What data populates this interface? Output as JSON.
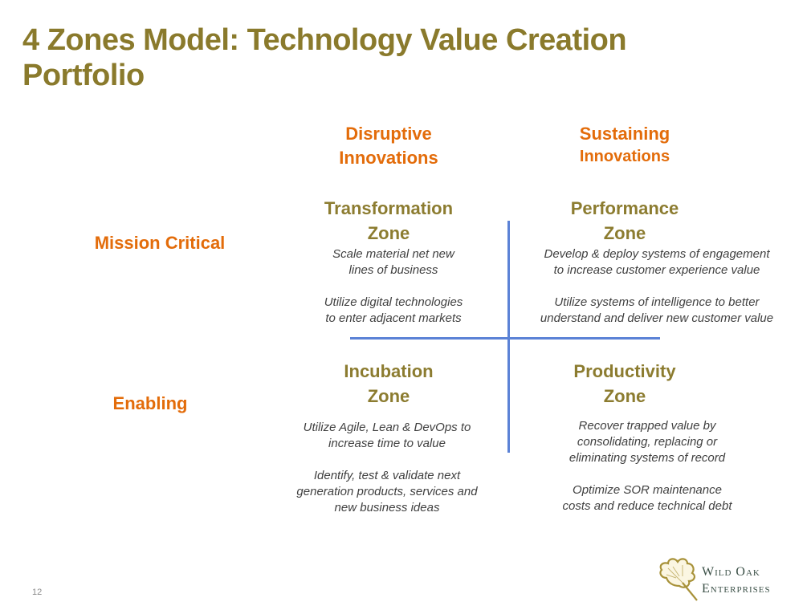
{
  "title": {
    "lines": [
      "4 Zones Model: Technology Value Creation",
      "Portfolio"
    ]
  },
  "columns": [
    {
      "lines": [
        "Disruptive",
        "Innovations"
      ]
    },
    {
      "lines": [
        "Sustaining",
        "Innovations"
      ]
    }
  ],
  "rows": [
    {
      "label": "Mission Critical"
    },
    {
      "label": "Enabling"
    }
  ],
  "zones": {
    "transformation": {
      "title": [
        "Transformation",
        "Zone"
      ],
      "desc1": [
        "Scale material net new",
        "lines of business"
      ],
      "desc2": [
        "Utilize digital technologies",
        "to enter adjacent markets"
      ]
    },
    "performance": {
      "title": [
        "Performance",
        "Zone"
      ],
      "desc1": [
        "Develop & deploy systems of engagement",
        "to increase customer experience value"
      ],
      "desc2": [
        "Utilize systems of intelligence to better",
        "understand and deliver new customer value"
      ]
    },
    "incubation": {
      "title": [
        "Incubation",
        "Zone"
      ],
      "desc1": [
        "Utilize Agile, Lean & DevOps to",
        "increase time to value"
      ],
      "desc2": [
        "Identify, test & validate next",
        "generation products, services and",
        "new business ideas"
      ]
    },
    "productivity": {
      "title": [
        "Productivity",
        "Zone"
      ],
      "desc1": [
        "Recover trapped value by",
        "consolidating, replacing or",
        "eliminating systems of record"
      ],
      "desc2": [
        "Optimize SOR maintenance",
        "costs and reduce technical debt"
      ]
    }
  },
  "colors": {
    "title": "#8a7a2c",
    "heading_orange": "#e36c0a",
    "zone_olive": "#8c7c30",
    "axis_blue": "#5b82d6"
  },
  "page_number": "12",
  "logo": {
    "line1": "Wild Oak",
    "line2": "Enterprises",
    "icon": "oak-leaf-icon"
  }
}
